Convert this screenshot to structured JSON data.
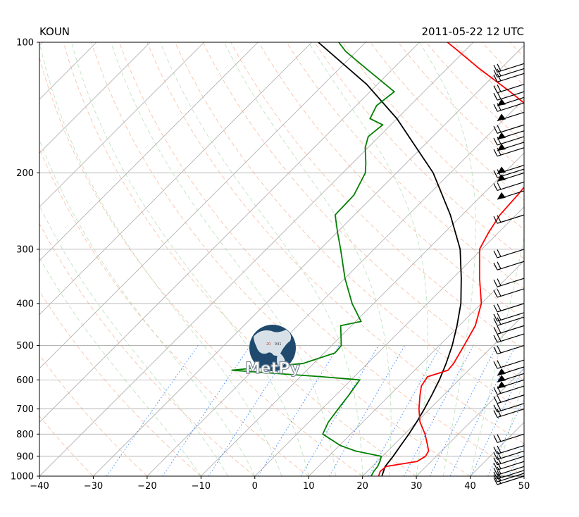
{
  "header": {
    "station": "KOUN",
    "datetime": "2011-05-22 12 UTC"
  },
  "chart_data": {
    "type": "line",
    "xlabel": "",
    "ylabel": "",
    "x_range": [
      -40,
      50
    ],
    "p_range": [
      1000,
      100
    ],
    "x_ticks": [
      -40,
      -30,
      -20,
      -10,
      0,
      10,
      20,
      30,
      40,
      50
    ],
    "p_ticks": [
      100,
      200,
      300,
      400,
      500,
      600,
      700,
      800,
      900,
      1000
    ],
    "y_scale": "log",
    "grid": true,
    "colors": {
      "temperature": "#ff0000",
      "dewpoint": "#008000",
      "parcel": "#000000",
      "isotherm": "#aaaaaa",
      "dry_adiabat": "#f4a582",
      "moist_adiabat": "#a6d9a6",
      "mixing_ratio": "#1f77ff",
      "logo": "#1f4a6e"
    },
    "series": [],
    "temperature_profile": [
      [
        1000,
        23.0
      ],
      [
        975,
        22.4
      ],
      [
        950,
        22.6
      ],
      [
        925,
        27.4
      ],
      [
        900,
        28.0
      ],
      [
        875,
        27.6
      ],
      [
        850,
        26.4
      ],
      [
        800,
        23.8
      ],
      [
        750,
        20.6
      ],
      [
        700,
        18.0
      ],
      [
        650,
        15.6
      ],
      [
        620,
        14.2
      ],
      [
        600,
        13.8
      ],
      [
        590,
        13.6
      ],
      [
        570,
        16.2
      ],
      [
        550,
        16.0
      ],
      [
        500,
        14.6
      ],
      [
        450,
        13.0
      ],
      [
        400,
        10.0
      ],
      [
        350,
        5.0
      ],
      [
        300,
        -0.4
      ],
      [
        275,
        -1.8
      ],
      [
        250,
        -3.0
      ],
      [
        225,
        -3.4
      ],
      [
        210,
        -3.8
      ],
      [
        195,
        -4.2
      ],
      [
        185,
        -4.8
      ],
      [
        175,
        -6.0
      ],
      [
        165,
        -8.6
      ],
      [
        160,
        -10.0
      ],
      [
        155,
        -12.2
      ],
      [
        150,
        -13.6
      ],
      [
        140,
        -18.2
      ],
      [
        130,
        -24.0
      ],
      [
        115,
        -34.0
      ],
      [
        105,
        -41.0
      ],
      [
        100,
        -44.8
      ]
    ],
    "dewpoint_profile": [
      [
        1000,
        21.6
      ],
      [
        975,
        21.2
      ],
      [
        950,
        21.0
      ],
      [
        925,
        20.5
      ],
      [
        900,
        19.8
      ],
      [
        875,
        14.0
      ],
      [
        850,
        10.2
      ],
      [
        800,
        4.8
      ],
      [
        750,
        3.6
      ],
      [
        700,
        3.0
      ],
      [
        650,
        2.4
      ],
      [
        600,
        1.6
      ],
      [
        590,
        -6.0
      ],
      [
        570,
        -24.0
      ],
      [
        550,
        -12.0
      ],
      [
        520,
        -8.0
      ],
      [
        500,
        -8.2
      ],
      [
        450,
        -12.0
      ],
      [
        440,
        -9.0
      ],
      [
        400,
        -14.0
      ],
      [
        350,
        -20.0
      ],
      [
        300,
        -26.2
      ],
      [
        275,
        -29.8
      ],
      [
        250,
        -33.6
      ],
      [
        225,
        -33.8
      ],
      [
        200,
        -35.8
      ],
      [
        190,
        -37.5
      ],
      [
        175,
        -40.5
      ],
      [
        165,
        -42.0
      ],
      [
        155,
        -41.5
      ],
      [
        150,
        -45.0
      ],
      [
        140,
        -46.2
      ],
      [
        130,
        -45.5
      ],
      [
        115,
        -55.0
      ],
      [
        105,
        -62.0
      ],
      [
        100,
        -65.0
      ]
    ],
    "parcel_profile": [
      [
        1000,
        23.6
      ],
      [
        950,
        22.4
      ],
      [
        900,
        22.0
      ],
      [
        850,
        21.4
      ],
      [
        800,
        20.8
      ],
      [
        750,
        20.0
      ],
      [
        700,
        19.0
      ],
      [
        650,
        17.8
      ],
      [
        600,
        16.4
      ],
      [
        550,
        14.6
      ],
      [
        500,
        12.4
      ],
      [
        450,
        9.6
      ],
      [
        400,
        6.2
      ],
      [
        350,
        1.6
      ],
      [
        300,
        -4.0
      ],
      [
        250,
        -12.2
      ],
      [
        200,
        -23.2
      ],
      [
        175,
        -31.0
      ],
      [
        150,
        -40.0
      ],
      [
        125,
        -52.0
      ],
      [
        100,
        -68.8
      ]
    ],
    "wind_barb_pressures": [
      1000,
      985,
      970,
      950,
      925,
      900,
      875,
      850,
      800,
      700,
      680,
      650,
      620,
      600,
      580,
      560,
      540,
      500,
      470,
      450,
      430,
      420,
      400,
      370,
      350,
      320,
      300,
      250,
      220,
      210,
      200,
      196,
      192,
      175,
      170,
      165,
      160,
      155,
      145,
      138,
      134,
      130,
      125,
      118,
      115,
      112
    ]
  }
}
